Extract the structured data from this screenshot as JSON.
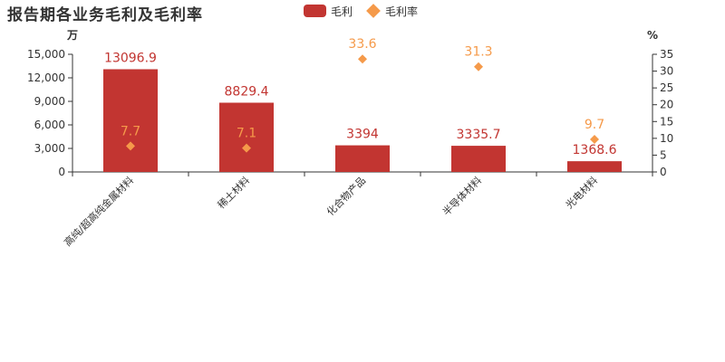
{
  "chart_data": {
    "type": "bar",
    "title": "报告期各业务毛利及毛利率",
    "categories": [
      "高纯/超高纯金属材料",
      "稀土材料",
      "化合物产品",
      "半导体材料",
      "光电材料"
    ],
    "series": [
      {
        "name": "毛利",
        "type": "bar",
        "axis": "left",
        "color": "#c23531",
        "values": [
          13096.9,
          8829.4,
          3394,
          3335.7,
          1368.6
        ],
        "labels": [
          "13096.9",
          "8829.4",
          "3394",
          "3335.7",
          "1368.6"
        ]
      },
      {
        "name": "毛利率",
        "type": "scatter",
        "axis": "right",
        "color": "#f59a4a",
        "values": [
          7.7,
          7.1,
          33.6,
          31.3,
          9.7
        ],
        "labels": [
          "7.7",
          "7.1",
          "33.6",
          "31.3",
          "9.7"
        ]
      }
    ],
    "y_left": {
      "unit": "万",
      "ylim": [
        0,
        15000
      ],
      "ticks": [
        0,
        3000,
        6000,
        9000,
        12000,
        15000
      ],
      "tick_labels": [
        "0",
        "3,000",
        "6,000",
        "9,000",
        "12,000",
        "15,000"
      ]
    },
    "y_right": {
      "unit": "%",
      "ylim": [
        0,
        35
      ],
      "ticks": [
        0,
        5,
        10,
        15,
        20,
        25,
        30,
        35
      ],
      "tick_labels": [
        "0",
        "5",
        "10",
        "15",
        "20",
        "25",
        "30",
        "35"
      ]
    },
    "legend_position": "top-center",
    "grid": false
  }
}
